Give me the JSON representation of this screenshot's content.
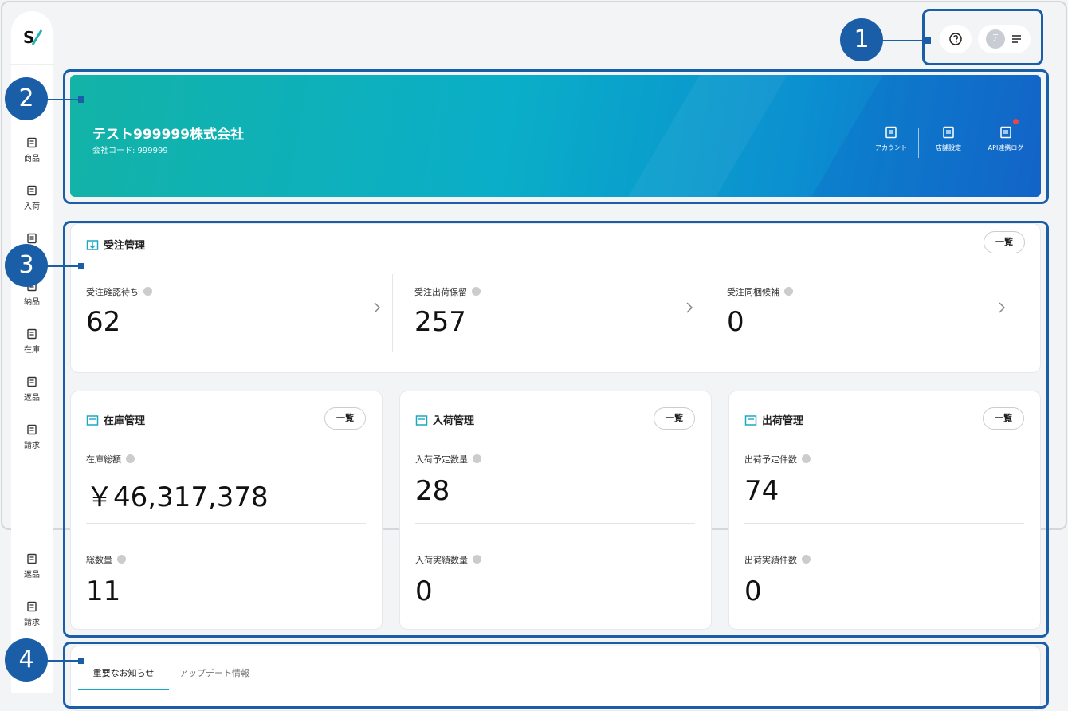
{
  "callouts": [
    "1",
    "2",
    "3",
    "4"
  ],
  "sidebar": {
    "items": [
      "商品",
      "入荷",
      "納品",
      "在庫",
      "返品",
      "請求"
    ],
    "lower_items": [
      "返品",
      "請求"
    ]
  },
  "header": {
    "avatar": "テ"
  },
  "banner": {
    "company": "テスト999999株式会社",
    "code": "会社コード: 999999",
    "actions": [
      "アカウント",
      "店舗設定",
      "API連携ログ"
    ]
  },
  "orders": {
    "title": "受注管理",
    "button": "一覧",
    "metrics": [
      {
        "label": "受注確認待ち",
        "value": "62"
      },
      {
        "label": "受注出荷保留",
        "value": "257"
      },
      {
        "label": "受注同梱候補",
        "value": "0"
      }
    ]
  },
  "cards": [
    {
      "title": "在庫管理",
      "button": "一覧",
      "metrics": [
        {
          "label": "在庫総額",
          "value": "￥46,317,378"
        },
        {
          "label": "総数量",
          "value": "11"
        }
      ]
    },
    {
      "title": "入荷管理",
      "button": "一覧",
      "metrics": [
        {
          "label": "入荷予定数量",
          "value": "28"
        },
        {
          "label": "入荷実績数量",
          "value": "0"
        }
      ]
    },
    {
      "title": "出荷管理",
      "button": "一覧",
      "metrics": [
        {
          "label": "出荷予定件数",
          "value": "74"
        },
        {
          "label": "出荷実績件数",
          "value": "0"
        }
      ]
    }
  ],
  "notices": {
    "tabs": [
      "重要なお知らせ",
      "アップデート情報"
    ]
  }
}
